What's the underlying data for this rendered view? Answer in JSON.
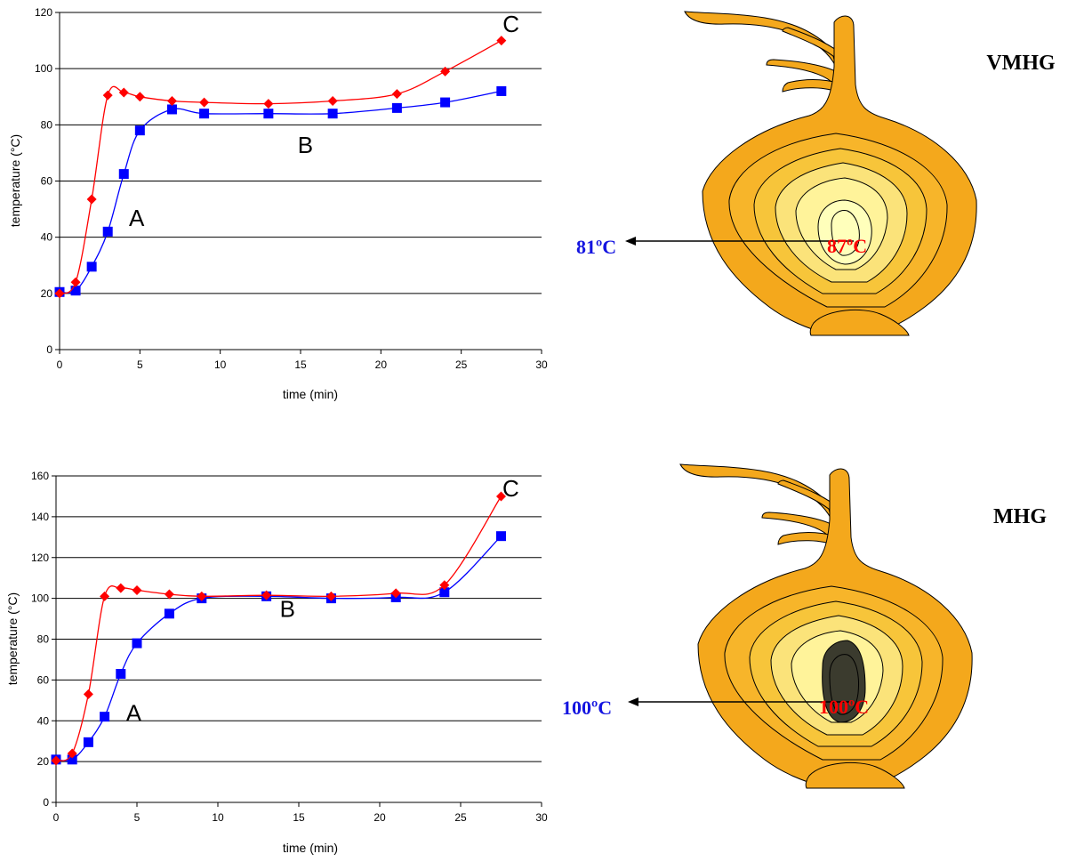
{
  "charts": {
    "chart_data": [
      {
        "type": "line",
        "panel": "VMHG",
        "xlabel": "time (min)",
        "ylabel": "temperature (°C)",
        "xlim": [
          0,
          30
        ],
        "ylim": [
          0,
          120
        ],
        "xticks": [
          0,
          5,
          10,
          15,
          20,
          25,
          30
        ],
        "yticks": [
          0,
          20,
          40,
          60,
          80,
          100,
          120
        ],
        "grid": "horizontal",
        "series": [
          {
            "color": "#ff0000",
            "marker": "diamond",
            "x": [
              0,
              1,
              2,
              3,
              4,
              5,
              7,
              9,
              13,
              17,
              21,
              24,
              27.5
            ],
            "y": [
              20,
              24,
              53.5,
              90.5,
              91.5,
              90,
              88.5,
              88,
              87.5,
              88.5,
              91,
              99,
              110
            ]
          },
          {
            "color": "#0000ff",
            "marker": "square",
            "x": [
              0,
              1,
              2,
              3,
              4,
              5,
              7,
              9,
              13,
              17,
              21,
              24,
              27.5
            ],
            "y": [
              20.5,
              21,
              29.5,
              42,
              62.5,
              78,
              85.5,
              84,
              84,
              84,
              86,
              88,
              92
            ]
          }
        ],
        "annotations": [
          {
            "text": "A",
            "x": 4.8,
            "y": 44
          },
          {
            "text": "B",
            "x": 15.3,
            "y": 70
          },
          {
            "text": "C",
            "x": 28.1,
            "y": 113
          }
        ]
      },
      {
        "type": "line",
        "panel": "MHG",
        "xlabel": "time (min)",
        "ylabel": "temperature (°C)",
        "xlim": [
          0,
          30
        ],
        "ylim": [
          0,
          160
        ],
        "xticks": [
          0,
          5,
          10,
          15,
          20,
          25,
          30
        ],
        "yticks": [
          0,
          20,
          40,
          60,
          80,
          100,
          120,
          140,
          160
        ],
        "grid": "horizontal",
        "series": [
          {
            "color": "#ff0000",
            "marker": "diamond",
            "x": [
              0,
              1,
              2,
              3,
              4,
              5,
              7,
              9,
              13,
              17,
              21,
              24,
              27.5
            ],
            "y": [
              20.5,
              24,
              53,
              101,
              105,
              104,
              102,
              101,
              101.5,
              101,
              102.5,
              106.5,
              150
            ]
          },
          {
            "color": "#0000ff",
            "marker": "square",
            "x": [
              0,
              1,
              2,
              3,
              4,
              5,
              7,
              9,
              13,
              17,
              21,
              24,
              27.5
            ],
            "y": [
              21,
              21,
              29.5,
              42,
              63,
              78,
              92.5,
              100,
              101,
              100,
              100.5,
              103,
              130.5
            ]
          }
        ],
        "annotations": [
          {
            "text": "A",
            "x": 4.8,
            "y": 40
          },
          {
            "text": "B",
            "x": 14.3,
            "y": 91
          },
          {
            "text": "C",
            "x": 28.1,
            "y": 150
          }
        ]
      }
    ]
  },
  "onions": [
    {
      "label": "VMHG",
      "outside_temp": "81ºC",
      "core_temp": "87ºC",
      "core_color": "#ffffbb"
    },
    {
      "label": "MHG",
      "outside_temp": "100ºC",
      "core_temp": "100ºC",
      "core_color": "#3b3b2e"
    }
  ],
  "colors": {
    "outer_layer": "#f4a81c",
    "mid_layer": "#f7c53a",
    "inner_layer": "#fbe37a",
    "center_layer": "#fff39a",
    "label_blue": "#1414e0",
    "label_red": "#ff0000"
  }
}
